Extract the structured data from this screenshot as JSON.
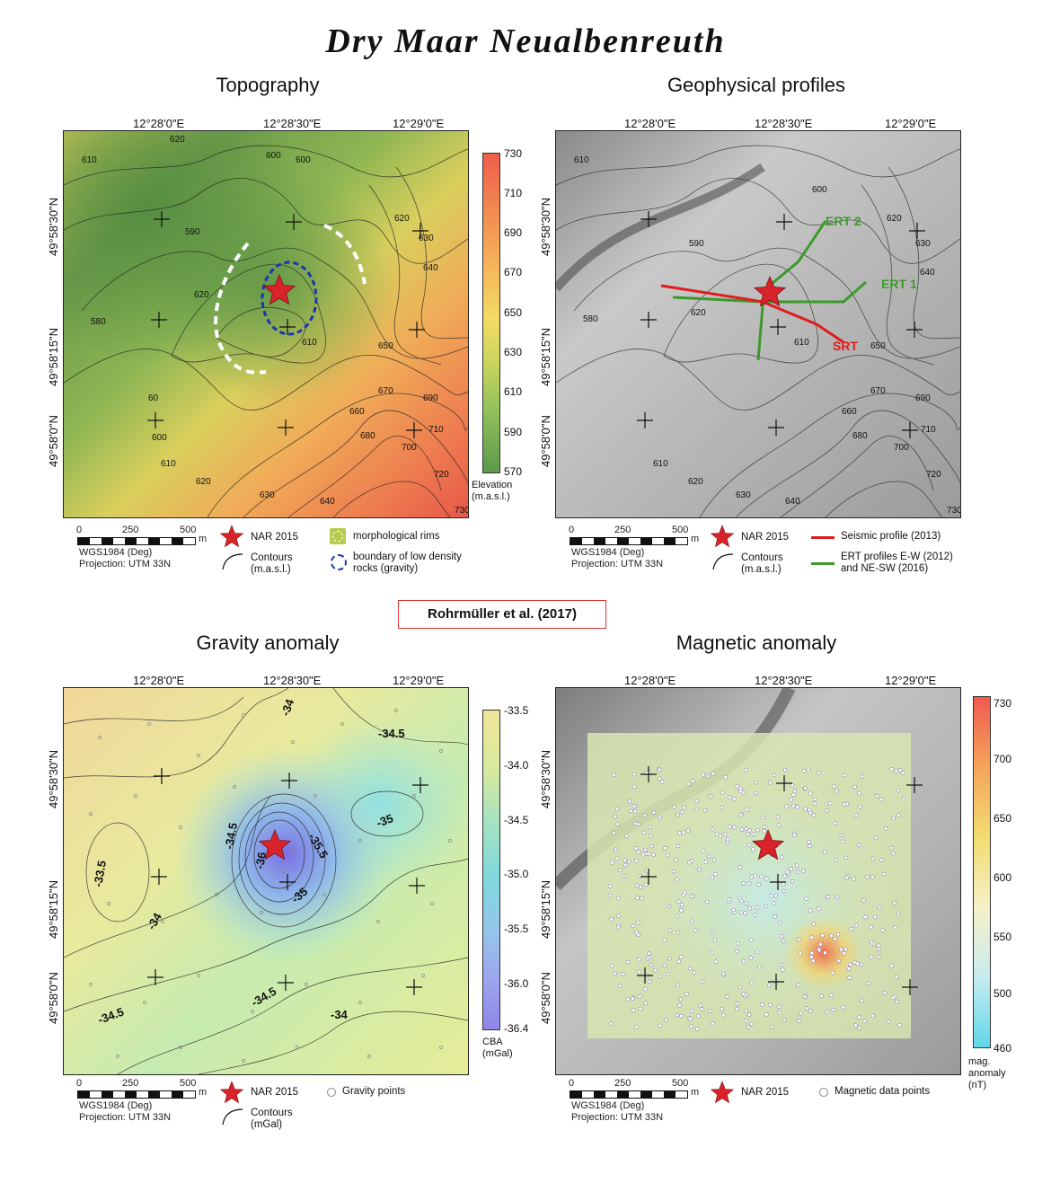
{
  "title": "Dry Maar Neualbenreuth",
  "citation": "Rohrmüller et al. (2017)",
  "panels": {
    "topography": {
      "title": "Topography",
      "colorbar": {
        "ticks": [
          "730",
          "710",
          "690",
          "670",
          "650",
          "630",
          "610",
          "590",
          "570"
        ],
        "caption_line1": "Elevation",
        "caption_line2": "(m.a.s.l.)",
        "colors": [
          "#ee5d4c",
          "#f18a50",
          "#f6b35a",
          "#f2dc63",
          "#c9d55c",
          "#93c15b",
          "#5b9a4a"
        ]
      },
      "contour_labels": [
        "620",
        "610",
        "600",
        "600",
        "590",
        "620",
        "620",
        "630",
        "640",
        "580",
        "600",
        "610",
        "650",
        "660",
        "670",
        "690",
        "680",
        "700",
        "710",
        "720",
        "730",
        "640",
        "630",
        "620",
        "610",
        "60"
      ],
      "legend": {
        "star": "NAR 2015",
        "contours_line1": "Contours",
        "contours_line2": "(m.a.s.l.)",
        "rims": "morphological rims",
        "boundary_line1": "boundary of low density",
        "boundary_line2": "rocks (gravity)"
      }
    },
    "geophysical": {
      "title": "Geophysical profiles",
      "profile_labels": {
        "ert2": "ERT 2",
        "ert1": "ERT 1",
        "srt": "SRT"
      },
      "contour_labels": [
        "610",
        "600",
        "590",
        "620",
        "630",
        "640",
        "580",
        "620",
        "610",
        "650",
        "660",
        "670",
        "690",
        "680",
        "700",
        "710",
        "720",
        "730",
        "640",
        "630",
        "620",
        "610"
      ],
      "legend": {
        "star": "NAR 2015",
        "contours_line1": "Contours",
        "contours_line2": "(m.a.s.l.)",
        "seismic": "Seismic profile (2013)",
        "ert_line1": "ERT profiles E-W (2012)",
        "ert_line2": "and NE-SW (2016)"
      }
    },
    "gravity": {
      "title": "Gravity anomaly",
      "colorbar": {
        "ticks": [
          "-33.5",
          "-34.0",
          "-34.5",
          "-35.0",
          "-35.5",
          "-36.0",
          "-36.4"
        ],
        "caption_line1": "CBA",
        "caption_line2": "(mGal)",
        "colors": [
          "#f1e59a",
          "#d8ea9e",
          "#a6e2c0",
          "#7fd8dc",
          "#93c8ea",
          "#9da6ee",
          "#8e86e8"
        ]
      },
      "contour_labels": [
        "-34",
        "-34.5",
        "-35",
        "-34.5",
        "-35.5",
        "-35",
        "-33.5",
        "-34",
        "-34.5",
        "-34.5",
        "-34",
        "-36"
      ],
      "legend": {
        "star": "NAR 2015",
        "points": "Gravity points",
        "contours_line1": "Contours",
        "contours_line2": "(mGal)"
      }
    },
    "magnetic": {
      "title": "Magnetic anomaly",
      "colorbar": {
        "ticks": [
          "730",
          "700",
          "650",
          "600",
          "550",
          "500",
          "460"
        ],
        "caption_line1": "mag.",
        "caption_line2": "anomaly",
        "caption_line3": "(nT)",
        "colors": [
          "#f05a50",
          "#f4a45a",
          "#f3dc70",
          "#f6f0c8",
          "#c8ecef",
          "#5fd6ea"
        ]
      },
      "legend": {
        "star": "NAR 2015",
        "points": "Magnetic data points"
      }
    }
  },
  "axes": {
    "lon": [
      "12°28'0\"E",
      "12°28'30\"E",
      "12°29'0\"E"
    ],
    "lat": [
      "49°58'30\"N",
      "49°58'15\"N",
      "49°58'0\"N"
    ]
  },
  "scalebar": {
    "ticks": [
      "0",
      "250",
      "500"
    ],
    "unit": "m",
    "datum": "WGS1984 (Deg)",
    "projection": "Projection: UTM 33N"
  }
}
